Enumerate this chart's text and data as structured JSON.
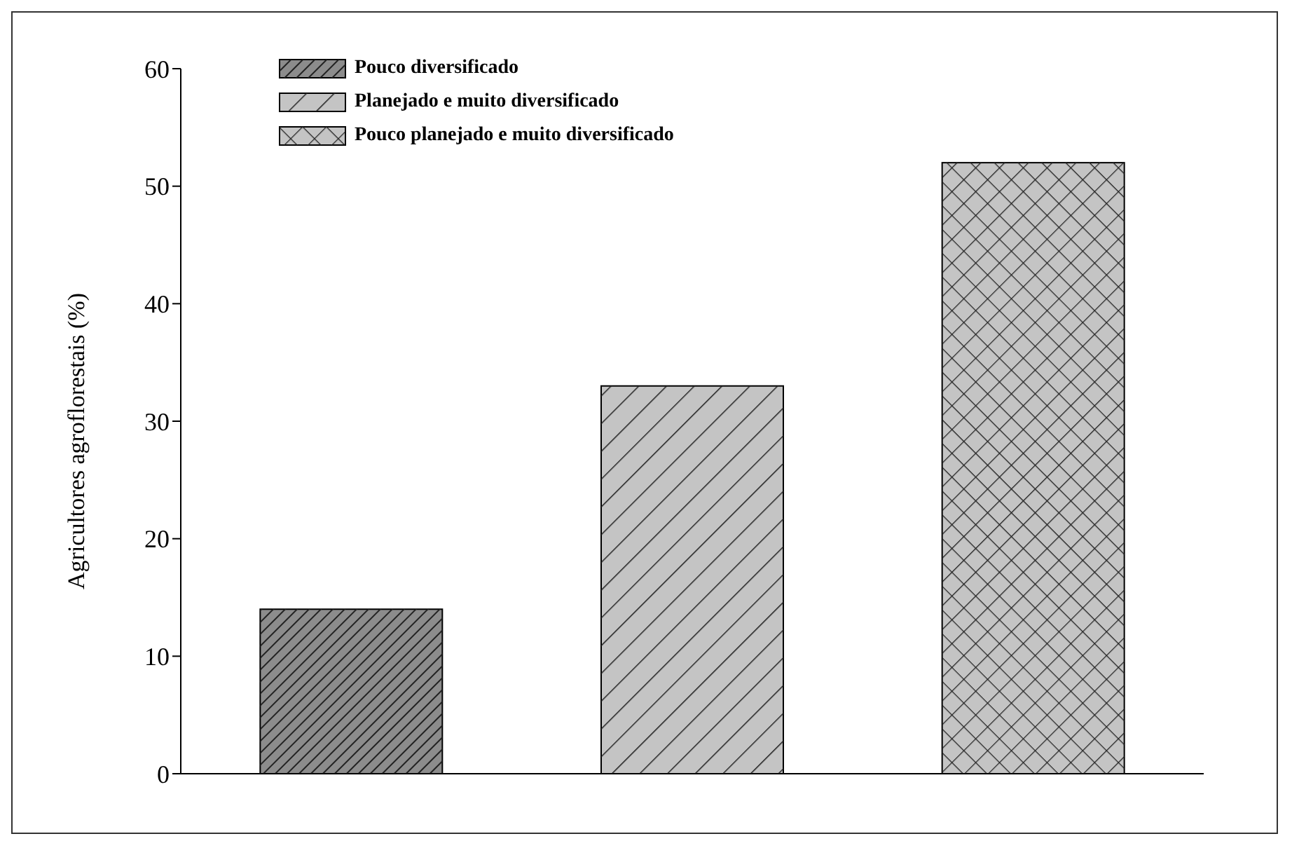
{
  "chart_data": {
    "type": "bar",
    "ylabel": "Agricultores  agroflorestais  (%)",
    "categories": [
      null,
      null,
      null
    ],
    "series": [
      {
        "name": "Pouco diversificado",
        "color": "#8c8c8c",
        "values": [
          14,
          null,
          null
        ]
      },
      {
        "name": "Planejado e muito diversificado",
        "color": "#c4c4c4",
        "values": [
          null,
          33,
          null
        ]
      },
      {
        "name": "Pouco planejado e muito diversificado",
        "color": "#c4c4c4",
        "values": [
          null,
          null,
          52
        ]
      }
    ],
    "ylim": [
      0,
      60
    ],
    "yticks": [
      0,
      10,
      20,
      30,
      40,
      50,
      60
    ],
    "grid": false,
    "legend": "top left"
  }
}
